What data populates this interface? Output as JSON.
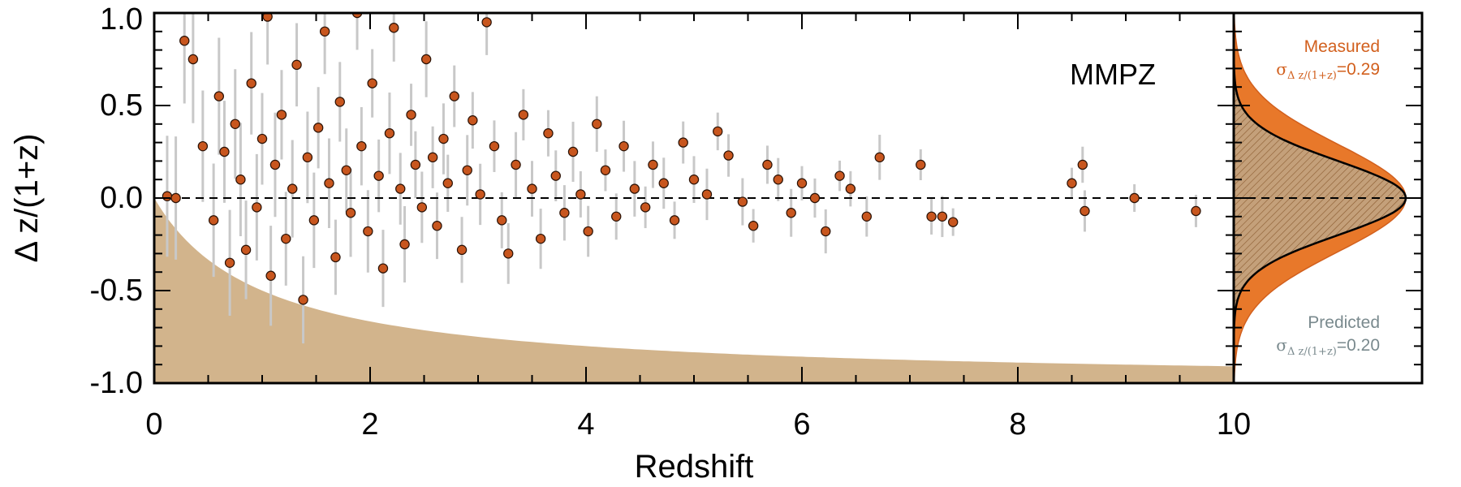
{
  "chart_data": {
    "type": "scatter",
    "title": "",
    "xlabel": "Redshift",
    "ylabel": "Δ z/(1+z)",
    "xlim": [
      0,
      10
    ],
    "ylim": [
      -1.0,
      1.0
    ],
    "xticks": [
      "0",
      "2",
      "4",
      "6",
      "8",
      "10"
    ],
    "yticks": [
      "-1.0",
      "-0.5",
      "0.0",
      "0.5",
      "1.0"
    ],
    "annotation": "MMPZ",
    "reference_line": {
      "y": 0.0,
      "style": "dashed"
    },
    "excluded_region": {
      "description": "Δz/(1+z) < -z/(1+z)",
      "color": "#d2b48c"
    },
    "colors": {
      "points": "#c8561e",
      "errorbars": "#c8c8c8",
      "excluded": "#d2b48c",
      "measured": "#e8782a",
      "predicted": "#7a8a8e"
    },
    "points": [
      [
        0.12,
        0.01
      ],
      [
        0.2,
        0.0
      ],
      [
        0.28,
        0.85
      ],
      [
        0.36,
        0.75
      ],
      [
        0.45,
        0.28
      ],
      [
        0.55,
        -0.12
      ],
      [
        0.6,
        0.55
      ],
      [
        0.65,
        0.25
      ],
      [
        0.7,
        -0.35
      ],
      [
        0.75,
        0.4
      ],
      [
        0.8,
        0.1
      ],
      [
        0.85,
        -0.28
      ],
      [
        0.9,
        0.62
      ],
      [
        0.95,
        -0.05
      ],
      [
        1.0,
        0.32
      ],
      [
        1.05,
        0.98
      ],
      [
        1.08,
        -0.42
      ],
      [
        1.12,
        0.18
      ],
      [
        1.18,
        0.45
      ],
      [
        1.22,
        -0.22
      ],
      [
        1.28,
        0.05
      ],
      [
        1.32,
        0.72
      ],
      [
        1.38,
        -0.55
      ],
      [
        1.42,
        0.22
      ],
      [
        1.48,
        -0.12
      ],
      [
        1.52,
        0.38
      ],
      [
        1.58,
        0.9
      ],
      [
        1.62,
        0.08
      ],
      [
        1.68,
        -0.32
      ],
      [
        1.72,
        0.52
      ],
      [
        1.78,
        0.15
      ],
      [
        1.82,
        -0.08
      ],
      [
        1.88,
        1.0
      ],
      [
        1.92,
        0.28
      ],
      [
        1.98,
        -0.18
      ],
      [
        2.02,
        0.62
      ],
      [
        2.08,
        0.12
      ],
      [
        2.12,
        -0.38
      ],
      [
        2.18,
        0.35
      ],
      [
        2.22,
        0.92
      ],
      [
        2.28,
        0.05
      ],
      [
        2.32,
        -0.25
      ],
      [
        2.38,
        0.45
      ],
      [
        2.42,
        0.18
      ],
      [
        2.48,
        -0.05
      ],
      [
        2.52,
        0.75
      ],
      [
        2.58,
        0.22
      ],
      [
        2.62,
        -0.15
      ],
      [
        2.68,
        0.32
      ],
      [
        2.72,
        0.08
      ],
      [
        2.78,
        0.55
      ],
      [
        2.85,
        -0.28
      ],
      [
        2.9,
        0.15
      ],
      [
        2.95,
        0.42
      ],
      [
        3.02,
        0.02
      ],
      [
        3.08,
        0.95
      ],
      [
        3.15,
        0.28
      ],
      [
        3.22,
        -0.12
      ],
      [
        3.28,
        -0.3
      ],
      [
        3.35,
        0.18
      ],
      [
        3.42,
        0.45
      ],
      [
        3.5,
        0.05
      ],
      [
        3.58,
        -0.22
      ],
      [
        3.65,
        0.35
      ],
      [
        3.72,
        0.12
      ],
      [
        3.8,
        -0.08
      ],
      [
        3.88,
        0.25
      ],
      [
        3.95,
        0.02
      ],
      [
        4.02,
        -0.18
      ],
      [
        4.1,
        0.4
      ],
      [
        4.18,
        0.15
      ],
      [
        4.28,
        -0.1
      ],
      [
        4.35,
        0.28
      ],
      [
        4.45,
        0.05
      ],
      [
        4.55,
        -0.05
      ],
      [
        4.62,
        0.18
      ],
      [
        4.72,
        0.08
      ],
      [
        4.82,
        -0.12
      ],
      [
        4.9,
        0.3
      ],
      [
        5.0,
        0.1
      ],
      [
        5.12,
        0.02
      ],
      [
        5.22,
        0.36
      ],
      [
        5.32,
        0.23
      ],
      [
        5.45,
        -0.02
      ],
      [
        5.55,
        -0.15
      ],
      [
        5.68,
        0.18
      ],
      [
        5.78,
        0.1
      ],
      [
        5.9,
        -0.08
      ],
      [
        6.0,
        0.08
      ],
      [
        6.12,
        0.0
      ],
      [
        6.22,
        -0.18
      ],
      [
        6.35,
        0.12
      ],
      [
        6.45,
        0.05
      ],
      [
        6.6,
        -0.1
      ],
      [
        6.72,
        0.22
      ],
      [
        7.1,
        0.18
      ],
      [
        7.2,
        -0.1
      ],
      [
        7.3,
        -0.1
      ],
      [
        7.4,
        -0.13
      ],
      [
        8.5,
        0.08
      ],
      [
        8.6,
        0.18
      ],
      [
        8.62,
        -0.07
      ],
      [
        9.08,
        0.0
      ],
      [
        9.65,
        -0.07
      ]
    ],
    "side_panel": {
      "measured": {
        "label": "Measured",
        "sigma_prefix": "σ",
        "sigma_sub": "Δ z/(1+z)",
        "sigma_value": "=0.29"
      },
      "predicted": {
        "label": "Predicted",
        "sigma_prefix": "σ",
        "sigma_sub": "Δ z/(1+z)",
        "sigma_value": "=0.20"
      }
    }
  }
}
